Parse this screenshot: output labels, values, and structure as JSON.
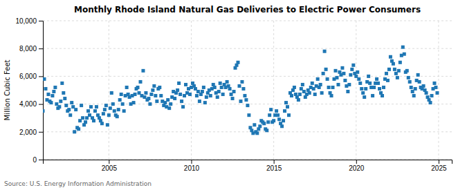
{
  "chart_data": {
    "type": "scatter",
    "title": "Monthly Rhode Island Natural Gas Deliveries to Electric Power Consumers",
    "ylabel": "Million Cubic Feet",
    "source": "Source: U.S. Energy Information Administration",
    "marker": "square",
    "grid": true,
    "xlim": [
      2001.0,
      2025.8
    ],
    "ylim": [
      0,
      10000
    ],
    "xticks": [
      2005,
      2010,
      2015,
      2020,
      2025
    ],
    "yticks": [
      0,
      {
        "value": 2000,
        "label": "2,000"
      },
      {
        "value": 4000,
        "label": "4,000"
      },
      {
        "value": 6000,
        "label": "6,000"
      },
      {
        "value": 8000,
        "label": "8,000"
      },
      {
        "value": 10000,
        "label": "10,000"
      }
    ],
    "x": [
      2001,
      2001.0833,
      2001.1667,
      2001.25,
      2001.3333,
      2001.4167,
      2001.5,
      2001.5833,
      2001.6667,
      2001.75,
      2001.8333,
      2001.9167,
      2002,
      2002.0833,
      2002.1667,
      2002.25,
      2002.3333,
      2002.4167,
      2002.5,
      2002.5833,
      2002.6667,
      2002.75,
      2002.8333,
      2002.9167,
      2003,
      2003.0833,
      2003.1667,
      2003.25,
      2003.3333,
      2003.4167,
      2003.5,
      2003.5833,
      2003.6667,
      2003.75,
      2003.8333,
      2003.9167,
      2004,
      2004.0833,
      2004.1667,
      2004.25,
      2004.3333,
      2004.4167,
      2004.5,
      2004.5833,
      2004.6667,
      2004.75,
      2004.8333,
      2004.9167,
      2005,
      2005.0833,
      2005.1667,
      2005.25,
      2005.3333,
      2005.4167,
      2005.5,
      2005.5833,
      2005.6667,
      2005.75,
      2005.8333,
      2005.9167,
      2006,
      2006.0833,
      2006.1667,
      2006.25,
      2006.3333,
      2006.4167,
      2006.5,
      2006.5833,
      2006.6667,
      2006.75,
      2006.8333,
      2006.9167,
      2007,
      2007.0833,
      2007.1667,
      2007.25,
      2007.3333,
      2007.4167,
      2007.5,
      2007.5833,
      2007.6667,
      2007.75,
      2007.8333,
      2007.9167,
      2008,
      2008.0833,
      2008.1667,
      2008.25,
      2008.3333,
      2008.4167,
      2008.5,
      2008.5833,
      2008.6667,
      2008.75,
      2008.8333,
      2008.9167,
      2009,
      2009.0833,
      2009.1667,
      2009.25,
      2009.3333,
      2009.4167,
      2009.5,
      2009.5833,
      2009.6667,
      2009.75,
      2009.8333,
      2009.9167,
      2010,
      2010.0833,
      2010.1667,
      2010.25,
      2010.3333,
      2010.4167,
      2010.5,
      2010.5833,
      2010.6667,
      2010.75,
      2010.8333,
      2010.9167,
      2011,
      2011.0833,
      2011.1667,
      2011.25,
      2011.3333,
      2011.4167,
      2011.5,
      2011.5833,
      2011.6667,
      2011.75,
      2011.8333,
      2011.9167,
      2012,
      2012.0833,
      2012.1667,
      2012.25,
      2012.3333,
      2012.4167,
      2012.5,
      2012.5833,
      2012.6667,
      2012.75,
      2012.8333,
      2012.9167,
      2013,
      2013.0833,
      2013.1667,
      2013.25,
      2013.3333,
      2013.4167,
      2013.5,
      2013.5833,
      2013.6667,
      2013.75,
      2013.8333,
      2013.9167,
      2014,
      2014.0833,
      2014.1667,
      2014.25,
      2014.3333,
      2014.4167,
      2014.5,
      2014.5833,
      2014.6667,
      2014.75,
      2014.8333,
      2014.9167,
      2015,
      2015.0833,
      2015.1667,
      2015.25,
      2015.3333,
      2015.4167,
      2015.5,
      2015.5833,
      2015.6667,
      2015.75,
      2015.8333,
      2015.9167,
      2016,
      2016.0833,
      2016.1667,
      2016.25,
      2016.3333,
      2016.4167,
      2016.5,
      2016.5833,
      2016.6667,
      2016.75,
      2016.8333,
      2016.9167,
      2017,
      2017.0833,
      2017.1667,
      2017.25,
      2017.3333,
      2017.4167,
      2017.5,
      2017.5833,
      2017.6667,
      2017.75,
      2017.8333,
      2017.9167,
      2018,
      2018.0833,
      2018.1667,
      2018.25,
      2018.3333,
      2018.4167,
      2018.5,
      2018.5833,
      2018.6667,
      2018.75,
      2018.8333,
      2018.9167,
      2019,
      2019.0833,
      2019.1667,
      2019.25,
      2019.3333,
      2019.4167,
      2019.5,
      2019.5833,
      2019.6667,
      2019.75,
      2019.8333,
      2019.9167,
      2020,
      2020.0833,
      2020.1667,
      2020.25,
      2020.3333,
      2020.4167,
      2020.5,
      2020.5833,
      2020.6667,
      2020.75,
      2020.8333,
      2020.9167,
      2021,
      2021.0833,
      2021.1667,
      2021.25,
      2021.3333,
      2021.4167,
      2021.5,
      2021.5833,
      2021.6667,
      2021.75,
      2021.8333,
      2021.9167,
      2022,
      2022.0833,
      2022.1667,
      2022.25,
      2022.3333,
      2022.4167,
      2022.5,
      2022.5833,
      2022.6667,
      2022.75,
      2022.8333,
      2022.9167,
      2023,
      2023.0833,
      2023.1667,
      2023.25,
      2023.3333,
      2023.4167,
      2023.5,
      2023.5833,
      2023.6667,
      2023.75,
      2023.8333,
      2023.9167,
      2024,
      2024.0833,
      2024.1667,
      2024.25,
      2024.3333,
      2024.4167,
      2024.5,
      2024.5833,
      2024.6667,
      2024.75,
      2024.8333,
      2024.9167
    ],
    "values": [
      3500,
      5800,
      5100,
      4300,
      4700,
      4200,
      4100,
      4600,
      4900,
      5200,
      4000,
      3700,
      3800,
      4200,
      5500,
      4800,
      4400,
      3900,
      3500,
      3600,
      3200,
      4100,
      3800,
      2000,
      3600,
      2300,
      2200,
      2800,
      3900,
      3000,
      2500,
      2700,
      3000,
      3500,
      3200,
      3800,
      3000,
      2800,
      3500,
      3800,
      3200,
      3000,
      2800,
      2600,
      3300,
      3600,
      3900,
      2500,
      3200,
      3700,
      4800,
      4000,
      3500,
      3200,
      3100,
      3600,
      4300,
      4700,
      4000,
      3500,
      4600,
      5200,
      4700,
      4500,
      4000,
      4600,
      4100,
      4700,
      5100,
      5200,
      4800,
      5600,
      4600,
      6400,
      4500,
      4800,
      4300,
      4400,
      4000,
      4700,
      5000,
      5300,
      4600,
      4200,
      5100,
      5200,
      4600,
      4200,
      3900,
      4100,
      3800,
      4300,
      3700,
      4000,
      4500,
      4900,
      4400,
      4800,
      5000,
      5500,
      4700,
      4200,
      3800,
      4600,
      5400,
      4800,
      5100,
      4700,
      5200,
      5500,
      5300,
      5100,
      4600,
      4900,
      4200,
      4700,
      4900,
      5200,
      4100,
      4500,
      4800,
      5000,
      4600,
      5100,
      5400,
      5200,
      4800,
      4500,
      4900,
      5500,
      5200,
      4700,
      5400,
      5200,
      5600,
      5300,
      5100,
      4700,
      4400,
      4900,
      6600,
      6800,
      7000,
      5300,
      4200,
      5600,
      5100,
      4600,
      4300,
      3900,
      3200,
      2300,
      2100,
      1900,
      2500,
      2000,
      1900,
      2200,
      2400,
      2800,
      2700,
      2600,
      2200,
      2100,
      2700,
      3200,
      3600,
      2700,
      2800,
      3200,
      3500,
      3200,
      2900,
      2600,
      2400,
      2800,
      3500,
      4100,
      3800,
      3200,
      4800,
      4600,
      5000,
      5200,
      4700,
      4500,
      4300,
      4700,
      5100,
      5400,
      4900,
      4500,
      4700,
      5000,
      4800,
      5200,
      5500,
      5100,
      4700,
      5300,
      5800,
      5200,
      5400,
      4800,
      6200,
      7800,
      6500,
      5800,
      5200,
      4800,
      4600,
      5200,
      5800,
      6400,
      5900,
      5400,
      6300,
      6100,
      6600,
      6200,
      5700,
      5300,
      4900,
      5400,
      6100,
      6500,
      6800,
      6200,
      6000,
      6300,
      5800,
      5500,
      5100,
      4800,
      4500,
      5100,
      5600,
      6000,
      5500,
      5200,
      4600,
      5200,
      5500,
      5800,
      5500,
      5100,
      4800,
      4600,
      5200,
      5800,
      6200,
      5700,
      6500,
      7400,
      7100,
      6900,
      6500,
      6200,
      5900,
      6400,
      7000,
      7500,
      8100,
      7600,
      6300,
      6400,
      5900,
      5600,
      5200,
      4900,
      4600,
      5100,
      5700,
      6100,
      5600,
      5200,
      5100,
      5300,
      5000,
      4800,
      4500,
      4300,
      4100,
      4600,
      5100,
      5500,
      5200,
      4800
    ]
  }
}
